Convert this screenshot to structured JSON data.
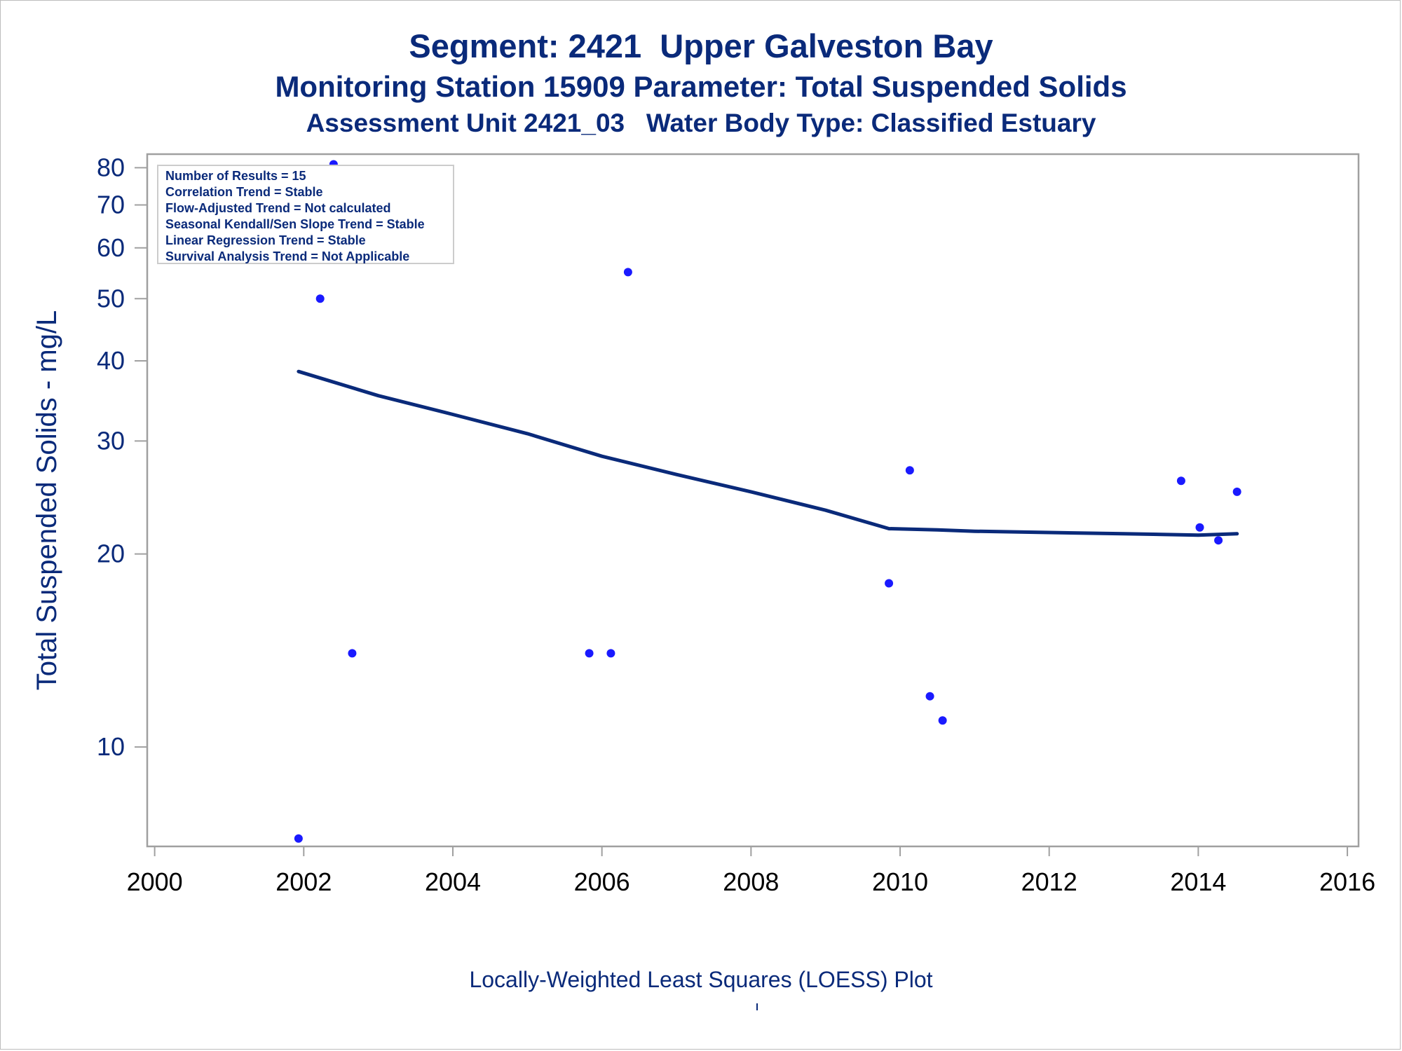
{
  "titles": {
    "line1": "Segment: 2421  Upper Galveston Bay",
    "line2": "Monitoring Station 15909 Parameter: Total Suspended Solids",
    "line3": "Assessment Unit 2421_03   Water Body Type: Classified Estuary"
  },
  "footnote": "Locally-Weighted Least Squares (LOESS) Plot",
  "stats_box": [
    "Number of Results = 15",
    "Correlation Trend = Stable",
    "Flow-Adjusted Trend = Not calculated",
    "Seasonal Kendall/Sen Slope Trend = Stable",
    "Linear Regression Trend = Stable",
    "Survival Analysis Trend = Not Applicable"
  ],
  "colors": {
    "title": "#0a2a7a",
    "points": "#1a1aff",
    "loess_line": "#0a2a7a",
    "axis": "#a0a0a0"
  },
  "chart_data": {
    "type": "scatter",
    "title": "Segment: 2421  Upper Galveston Bay",
    "ylabel": "Total Suspended Solids - mg/L",
    "xlabel": "",
    "y_scale": "log",
    "xlim": [
      1999.9,
      2016.15
    ],
    "ylim": [
      7.0,
      84.0
    ],
    "x_ticks": [
      2000,
      2002,
      2004,
      2006,
      2008,
      2010,
      2012,
      2014,
      2016
    ],
    "x_tick_labels": [
      "2000",
      "2002",
      "2004",
      "2006",
      "2008",
      "2010",
      "2012",
      "2014",
      "2016"
    ],
    "y_ticks": [
      10,
      20,
      30,
      40,
      50,
      60,
      70,
      80
    ],
    "y_tick_labels": [
      "10",
      "20",
      "30",
      "40",
      "50",
      "60",
      "70",
      "80"
    ],
    "legend": "top-left",
    "grid": false,
    "series": [
      {
        "type": "scatter",
        "x": [
          2001.93,
          2002.22,
          2002.4,
          2002.65,
          2005.83,
          2006.12,
          2006.35,
          2009.85,
          2010.13,
          2010.4,
          2010.57,
          2013.77,
          2014.02,
          2014.27,
          2014.52
        ],
        "y": [
          7.2,
          50,
          81,
          14,
          14,
          14,
          55,
          18,
          27,
          12,
          11,
          26,
          22,
          21,
          25
        ]
      },
      {
        "type": "line",
        "x": [
          2001.93,
          2003,
          2004,
          2005,
          2006,
          2007,
          2008,
          2009,
          2009.85,
          2010.5,
          2011,
          2012,
          2013,
          2014,
          2014.52
        ],
        "y": [
          38.5,
          35.3,
          33.0,
          30.8,
          28.4,
          26.6,
          25.0,
          23.4,
          21.9,
          21.8,
          21.7,
          21.6,
          21.5,
          21.4,
          21.5
        ]
      }
    ]
  }
}
